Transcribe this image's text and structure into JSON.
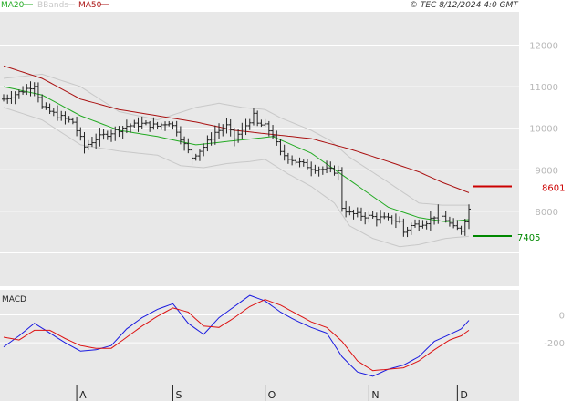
{
  "colors": {
    "background": "#e8e8e8",
    "candle": "#222222",
    "ma20": "#22aa22",
    "ma50": "#aa1111",
    "bbands": "#c8c8c8",
    "macd": "#1a1ae0",
    "signal": "#dd1111",
    "axis_text": "#b8b8b8",
    "marker_red": "#cc0000",
    "marker_green": "#008800"
  },
  "legend": [
    {
      "label": "MA20",
      "color": "#22aa22"
    },
    {
      "label": "BBands",
      "color": "#c8c8c8"
    },
    {
      "label": "MA50",
      "color": "#aa1111"
    }
  ],
  "stamp": "© TEC 8/12/2024 4:0 GMT",
  "macd_title": "MACD",
  "chart_data": [
    {
      "type": "candlestick",
      "title": "",
      "ylim": [
        6200,
        12800
      ],
      "y_ticks": [
        {
          "value": 12000,
          "label": "12000"
        },
        {
          "value": 11000,
          "label": "11000"
        },
        {
          "value": 10000,
          "label": "10000"
        },
        {
          "value": 9000,
          "label": "9000"
        },
        {
          "value": 8000,
          "label": "8000"
        }
      ],
      "month_labels": [
        {
          "label": "A",
          "index": 19
        },
        {
          "label": "S",
          "index": 44
        },
        {
          "label": "O",
          "index": 68
        },
        {
          "label": "N",
          "index": 95
        },
        {
          "label": "D",
          "index": 118
        }
      ],
      "n_points": 122,
      "price_anchors": [
        [
          0,
          10700
        ],
        [
          5,
          10900
        ],
        [
          8,
          11050
        ],
        [
          10,
          10500
        ],
        [
          14,
          10300
        ],
        [
          18,
          10150
        ],
        [
          21,
          9550
        ],
        [
          24,
          9750
        ],
        [
          28,
          9900
        ],
        [
          32,
          10050
        ],
        [
          36,
          10100
        ],
        [
          40,
          10050
        ],
        [
          43,
          10150
        ],
        [
          45,
          9950
        ],
        [
          47,
          9600
        ],
        [
          49,
          9300
        ],
        [
          52,
          9550
        ],
        [
          55,
          9900
        ],
        [
          58,
          10050
        ],
        [
          60,
          9750
        ],
        [
          62,
          9950
        ],
        [
          65,
          10300
        ],
        [
          66,
          10100
        ],
        [
          68,
          10050
        ],
        [
          70,
          9850
        ],
        [
          72,
          9400
        ],
        [
          76,
          9200
        ],
        [
          80,
          9050
        ],
        [
          84,
          9000
        ],
        [
          87,
          8950
        ],
        [
          88,
          8100
        ],
        [
          90,
          7950
        ],
        [
          93,
          7900
        ],
        [
          97,
          7850
        ],
        [
          101,
          7800
        ],
        [
          103,
          7750
        ],
        [
          104,
          7500
        ],
        [
          106,
          7650
        ],
        [
          110,
          7750
        ],
        [
          113,
          7950
        ],
        [
          115,
          7800
        ],
        [
          117,
          7600
        ],
        [
          119,
          7550
        ],
        [
          120,
          7800
        ],
        [
          121,
          8050
        ]
      ],
      "ma20_anchors": [
        [
          0,
          11000
        ],
        [
          10,
          10800
        ],
        [
          20,
          10300
        ],
        [
          30,
          9950
        ],
        [
          40,
          9800
        ],
        [
          50,
          9600
        ],
        [
          60,
          9700
        ],
        [
          70,
          9800
        ],
        [
          80,
          9400
        ],
        [
          90,
          8750
        ],
        [
          100,
          8100
        ],
        [
          108,
          7850
        ],
        [
          115,
          7750
        ],
        [
          121,
          7800
        ]
      ],
      "ma50_anchors": [
        [
          0,
          11500
        ],
        [
          10,
          11200
        ],
        [
          20,
          10700
        ],
        [
          30,
          10450
        ],
        [
          40,
          10300
        ],
        [
          50,
          10150
        ],
        [
          60,
          9950
        ],
        [
          70,
          9850
        ],
        [
          80,
          9750
        ],
        [
          90,
          9500
        ],
        [
          100,
          9200
        ],
        [
          108,
          8950
        ],
        [
          114,
          8700
        ],
        [
          121,
          8450
        ]
      ],
      "bb_upper_anchors": [
        [
          0,
          11200
        ],
        [
          10,
          11300
        ],
        [
          20,
          11000
        ],
        [
          30,
          10400
        ],
        [
          40,
          10200
        ],
        [
          50,
          10500
        ],
        [
          56,
          10600
        ],
        [
          62,
          10500
        ],
        [
          68,
          10450
        ],
        [
          72,
          10250
        ],
        [
          80,
          9950
        ],
        [
          85,
          9700
        ],
        [
          90,
          9300
        ],
        [
          100,
          8700
        ],
        [
          108,
          8200
        ],
        [
          114,
          8150
        ],
        [
          121,
          8150
        ]
      ],
      "bb_lower_anchors": [
        [
          0,
          10500
        ],
        [
          10,
          10200
        ],
        [
          20,
          9600
        ],
        [
          30,
          9450
        ],
        [
          40,
          9350
        ],
        [
          46,
          9100
        ],
        [
          52,
          9050
        ],
        [
          58,
          9150
        ],
        [
          64,
          9200
        ],
        [
          68,
          9250
        ],
        [
          74,
          8900
        ],
        [
          80,
          8600
        ],
        [
          86,
          8200
        ],
        [
          90,
          7650
        ],
        [
          96,
          7350
        ],
        [
          103,
          7150
        ],
        [
          108,
          7200
        ],
        [
          115,
          7350
        ],
        [
          121,
          7400
        ]
      ],
      "markers": [
        {
          "label": "8601",
          "value": 8601,
          "color": "#cc0000"
        },
        {
          "label": "7405",
          "value": 7405,
          "color": "#008800"
        }
      ]
    },
    {
      "type": "line",
      "title": "MACD",
      "ylim": [
        -500,
        180
      ],
      "y_ticks": [
        {
          "value": 0,
          "label": "0"
        },
        {
          "value": -200,
          "label": "-200"
        }
      ],
      "series": [
        {
          "key": "macd",
          "anchors": [
            [
              0,
              -230
            ],
            [
              4,
              -150
            ],
            [
              8,
              -60
            ],
            [
              12,
              -130
            ],
            [
              16,
              -200
            ],
            [
              20,
              -260
            ],
            [
              24,
              -250
            ],
            [
              28,
              -220
            ],
            [
              32,
              -100
            ],
            [
              36,
              -20
            ],
            [
              40,
              40
            ],
            [
              44,
              80
            ],
            [
              48,
              -60
            ],
            [
              52,
              -140
            ],
            [
              56,
              -20
            ],
            [
              60,
              60
            ],
            [
              64,
              140
            ],
            [
              68,
              100
            ],
            [
              72,
              20
            ],
            [
              76,
              -40
            ],
            [
              80,
              -90
            ],
            [
              84,
              -130
            ],
            [
              88,
              -300
            ],
            [
              92,
              -410
            ],
            [
              96,
              -440
            ],
            [
              100,
              -390
            ],
            [
              104,
              -360
            ],
            [
              108,
              -300
            ],
            [
              112,
              -190
            ],
            [
              116,
              -140
            ],
            [
              119,
              -100
            ],
            [
              121,
              -40
            ]
          ]
        },
        {
          "key": "signal",
          "anchors": [
            [
              0,
              -160
            ],
            [
              4,
              -180
            ],
            [
              8,
              -110
            ],
            [
              12,
              -110
            ],
            [
              16,
              -170
            ],
            [
              20,
              -220
            ],
            [
              24,
              -240
            ],
            [
              28,
              -240
            ],
            [
              32,
              -160
            ],
            [
              36,
              -80
            ],
            [
              40,
              -10
            ],
            [
              44,
              50
            ],
            [
              48,
              20
            ],
            [
              52,
              -80
            ],
            [
              56,
              -90
            ],
            [
              60,
              -20
            ],
            [
              64,
              60
            ],
            [
              68,
              110
            ],
            [
              72,
              70
            ],
            [
              76,
              10
            ],
            [
              80,
              -50
            ],
            [
              84,
              -90
            ],
            [
              88,
              -190
            ],
            [
              92,
              -330
            ],
            [
              96,
              -400
            ],
            [
              100,
              -390
            ],
            [
              104,
              -380
            ],
            [
              108,
              -330
            ],
            [
              112,
              -250
            ],
            [
              116,
              -180
            ],
            [
              119,
              -150
            ],
            [
              121,
              -110
            ]
          ]
        }
      ]
    }
  ]
}
